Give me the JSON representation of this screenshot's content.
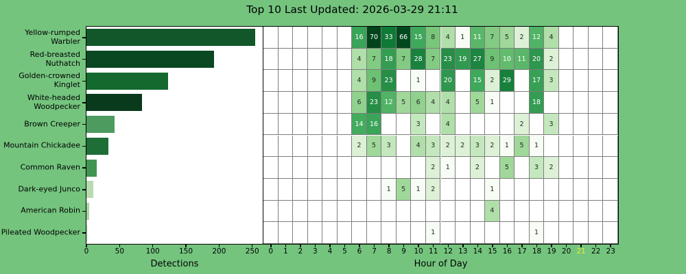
{
  "title": "Top 10 Last Updated: 2026-03-29 21:11",
  "theme": {
    "figure_background": "#74c47e",
    "plot_background": "#ffffff",
    "axis_line": "#000000",
    "grid_line": "#7d7d7d",
    "text": "#000000",
    "annotation_dark": "#262626",
    "annotation_light": "#ffffff",
    "highlight_hour_color": "#e8eb34",
    "greens_colormap_anchors": [
      "#f7fcf5",
      "#e5f5e0",
      "#c7e9c0",
      "#a1d99b",
      "#74c476",
      "#41ab5d",
      "#238b45",
      "#006d2c",
      "#00441b"
    ]
  },
  "chart_data": [
    {
      "type": "bar",
      "orientation": "horizontal",
      "title": "",
      "xlabel": "Detections",
      "categories": [
        "Yellow-rumped Warbler",
        "Red-breasted Nuthatch",
        "Golden-crowned Kinglet",
        "White-headed Woodpecker",
        "Brown Creeper",
        "Mountain Chickadee",
        "Common Raven",
        "Dark-eyed Junco",
        "American Robin",
        "Pileated Woodpecker"
      ],
      "values": [
        254,
        192,
        123,
        84,
        42,
        33,
        15,
        10,
        4,
        2
      ],
      "bar_colors": [
        "#115729",
        "#0a4822",
        "#13692e",
        "#0a3a1c",
        "#4d9b5f",
        "#1e6e37",
        "#3f9452",
        "#b6dcb0",
        "#a9d6a3",
        "#d6edd0"
      ],
      "xticks": [
        0,
        50,
        100,
        150,
        200,
        250
      ],
      "xlim": [
        0,
        265.8
      ],
      "grid": false
    },
    {
      "type": "heatmap",
      "title": "",
      "xlabel": "Hour of Day",
      "xticks": [
        0,
        1,
        2,
        3,
        4,
        5,
        6,
        7,
        8,
        9,
        10,
        11,
        12,
        13,
        14,
        15,
        16,
        17,
        18,
        19,
        20,
        21,
        22,
        23
      ],
      "highlight_hour": 21,
      "colormap": "Greens",
      "scale": "log",
      "vmin": 1,
      "vmax": 70,
      "rows": [
        {
          "species": "Yellow-rumped Warbler",
          "counts": {
            "6": 16,
            "7": 70,
            "8": 33,
            "9": 66,
            "10": 15,
            "11": 8,
            "12": 4,
            "13": 1,
            "14": 11,
            "15": 7,
            "16": 5,
            "17": 2,
            "18": 12,
            "19": 4
          }
        },
        {
          "species": "Red-breasted Nuthatch",
          "counts": {
            "6": 4,
            "7": 7,
            "8": 18,
            "9": 7,
            "10": 28,
            "11": 7,
            "12": 23,
            "13": 19,
            "14": 27,
            "15": 9,
            "16": 10,
            "17": 11,
            "18": 20,
            "19": 2
          }
        },
        {
          "species": "Golden-crowned Kinglet",
          "counts": {
            "6": 4,
            "7": 9,
            "8": 23,
            "10": 1,
            "12": 20,
            "14": 15,
            "15": 2,
            "16": 29,
            "18": 17,
            "19": 3
          }
        },
        {
          "species": "White-headed Woodpecker",
          "counts": {
            "6": 6,
            "7": 23,
            "8": 12,
            "9": 5,
            "10": 6,
            "11": 4,
            "12": 4,
            "14": 5,
            "15": 1,
            "18": 18
          }
        },
        {
          "species": "Brown Creeper",
          "counts": {
            "6": 14,
            "7": 16,
            "10": 3,
            "12": 4,
            "17": 2,
            "19": 3
          }
        },
        {
          "species": "Mountain Chickadee",
          "counts": {
            "6": 2,
            "7": 5,
            "8": 3,
            "10": 4,
            "11": 3,
            "12": 2,
            "13": 2,
            "14": 3,
            "15": 2,
            "16": 1,
            "17": 5,
            "18": 1
          }
        },
        {
          "species": "Common Raven",
          "counts": {
            "11": 2,
            "12": 1,
            "14": 2,
            "16": 5,
            "18": 3,
            "19": 2
          }
        },
        {
          "species": "Dark-eyed Junco",
          "counts": {
            "8": 1,
            "9": 5,
            "10": 1,
            "11": 2,
            "15": 1
          }
        },
        {
          "species": "American Robin",
          "counts": {
            "15": 4
          }
        },
        {
          "species": "Pileated Woodpecker",
          "counts": {
            "11": 1,
            "18": 1
          }
        }
      ]
    }
  ]
}
